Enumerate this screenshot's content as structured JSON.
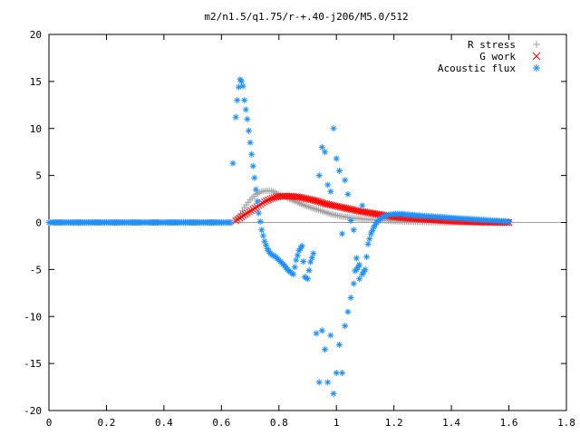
{
  "chart_data": {
    "type": "scatter",
    "title": "m2/n1.5/q1.75/r-+.40-j206/M5.0/512",
    "xlabel": "",
    "ylabel": "",
    "xlim": [
      0,
      1.8
    ],
    "ylim": [
      -20,
      20
    ],
    "x_ticks": [
      0,
      0.2,
      0.4,
      0.6,
      0.8,
      1,
      1.2,
      1.4,
      1.6,
      1.8
    ],
    "x_tick_labels": [
      "0",
      "0.2",
      "0.4",
      "0.6",
      "0.8",
      "1",
      "1.2",
      "1.4",
      "1.6",
      "1.8"
    ],
    "y_ticks": [
      -20,
      -15,
      -10,
      -5,
      0,
      5,
      10,
      15,
      20
    ],
    "y_tick_labels": [
      "-20",
      "-15",
      "-10",
      "-5",
      "0",
      "5",
      "10",
      "15",
      "20"
    ],
    "grid": false,
    "legend_position": "top-right",
    "series": [
      {
        "name": "R stress",
        "marker": "plus",
        "color": "#a0a0a0",
        "x": [
          0.0,
          0.05,
          0.1,
          0.15,
          0.2,
          0.25,
          0.3,
          0.35,
          0.4,
          0.45,
          0.5,
          0.55,
          0.6,
          0.64,
          0.66,
          0.68,
          0.7,
          0.72,
          0.74,
          0.76,
          0.78,
          0.8,
          0.83,
          0.86,
          0.89,
          0.92,
          0.95,
          0.98,
          1.01,
          1.05,
          1.1,
          1.15,
          1.2,
          1.25,
          1.3,
          1.35,
          1.4,
          1.45,
          1.5,
          1.55,
          1.6
        ],
        "y": [
          0,
          0,
          0,
          0,
          0,
          0,
          0,
          0,
          0,
          0,
          0,
          0,
          0,
          0,
          0.6,
          1.6,
          2.4,
          3.0,
          3.3,
          3.4,
          3.3,
          3.0,
          2.6,
          2.2,
          1.8,
          1.5,
          1.2,
          0.9,
          0.7,
          0.5,
          0.35,
          0.25,
          0.15,
          0.1,
          0.05,
          0.02,
          0.0,
          0.0,
          0.0,
          0.0,
          0.0
        ]
      },
      {
        "name": "G work",
        "marker": "cross",
        "color": "#ff0000",
        "x": [
          0.65,
          0.67,
          0.69,
          0.71,
          0.73,
          0.75,
          0.77,
          0.79,
          0.81,
          0.84,
          0.87,
          0.9,
          0.93,
          0.96,
          0.99,
          1.02,
          1.05,
          1.08,
          1.11,
          1.14,
          1.17,
          1.2,
          1.25,
          1.3,
          1.35,
          1.4,
          1.45,
          1.5,
          1.55,
          1.6
        ],
        "y": [
          0.2,
          0.6,
          1.0,
          1.4,
          1.8,
          2.2,
          2.5,
          2.7,
          2.8,
          2.8,
          2.7,
          2.5,
          2.3,
          2.0,
          1.8,
          1.6,
          1.4,
          1.2,
          1.05,
          0.9,
          0.75,
          0.6,
          0.45,
          0.35,
          0.25,
          0.15,
          0.1,
          0.05,
          0.02,
          0.0
        ]
      },
      {
        "name": "Acoustic flux",
        "marker": "star",
        "color": "#1e90ff",
        "x": [
          0.0,
          0.04,
          0.08,
          0.12,
          0.16,
          0.2,
          0.24,
          0.28,
          0.32,
          0.36,
          0.4,
          0.44,
          0.48,
          0.52,
          0.56,
          0.6,
          0.63,
          0.64,
          0.65,
          0.655,
          0.66,
          0.665,
          0.67,
          0.675,
          0.68,
          0.69,
          0.7,
          0.71,
          0.72,
          0.73,
          0.74,
          0.75,
          0.76,
          0.77,
          0.78,
          0.79,
          0.8,
          0.81,
          0.82,
          0.83,
          0.84,
          0.85,
          0.86,
          0.87,
          0.88,
          0.89,
          0.9,
          0.91,
          0.92,
          0.93,
          0.94,
          0.94,
          0.95,
          0.95,
          0.96,
          0.96,
          0.97,
          0.97,
          0.98,
          0.98,
          0.99,
          0.99,
          1.0,
          1.0,
          1.01,
          1.01,
          1.02,
          1.02,
          1.03,
          1.03,
          1.04,
          1.04,
          1.05,
          1.05,
          1.06,
          1.06,
          1.07,
          1.07,
          1.08,
          1.08,
          1.09,
          1.09,
          1.1,
          1.11,
          1.12,
          1.13,
          1.14,
          1.15,
          1.16,
          1.18,
          1.2,
          1.23,
          1.26,
          1.3,
          1.35,
          1.4,
          1.45,
          1.5,
          1.55,
          1.6
        ],
        "y": [
          0,
          0,
          0,
          0,
          0,
          0,
          0,
          0,
          0,
          0,
          0,
          0,
          0,
          0,
          0,
          0,
          0,
          6.3,
          11.2,
          13.0,
          14.4,
          15.2,
          15.0,
          14.5,
          13.0,
          11.0,
          8.5,
          6.0,
          3.5,
          1.0,
          -0.8,
          -2.0,
          -2.8,
          -3.3,
          -3.5,
          -3.7,
          -4.0,
          -4.3,
          -4.6,
          -5.0,
          -5.3,
          -5.5,
          -4.0,
          -3.0,
          -2.5,
          -5.8,
          -6.0,
          -4.2,
          -3.3,
          -11.8,
          5.0,
          -17.0,
          8.0,
          -11.5,
          7.5,
          -13.5,
          4.0,
          -17.0,
          3.3,
          -12.0,
          10.0,
          -18.2,
          6.8,
          -16.0,
          5.5,
          -13.0,
          -1.2,
          -16.0,
          4.5,
          -11.0,
          3.0,
          -9.5,
          0.2,
          -8.0,
          -0.8,
          -6.5,
          -3.8,
          -5.0,
          -4.5,
          -6.0,
          1.8,
          -5.5,
          -5.0,
          -2.3,
          -1.2,
          -0.5,
          0.0,
          0.3,
          0.6,
          0.8,
          0.9,
          0.9,
          0.8,
          0.7,
          0.6,
          0.5,
          0.4,
          0.3,
          0.2,
          0.1
        ]
      }
    ]
  }
}
